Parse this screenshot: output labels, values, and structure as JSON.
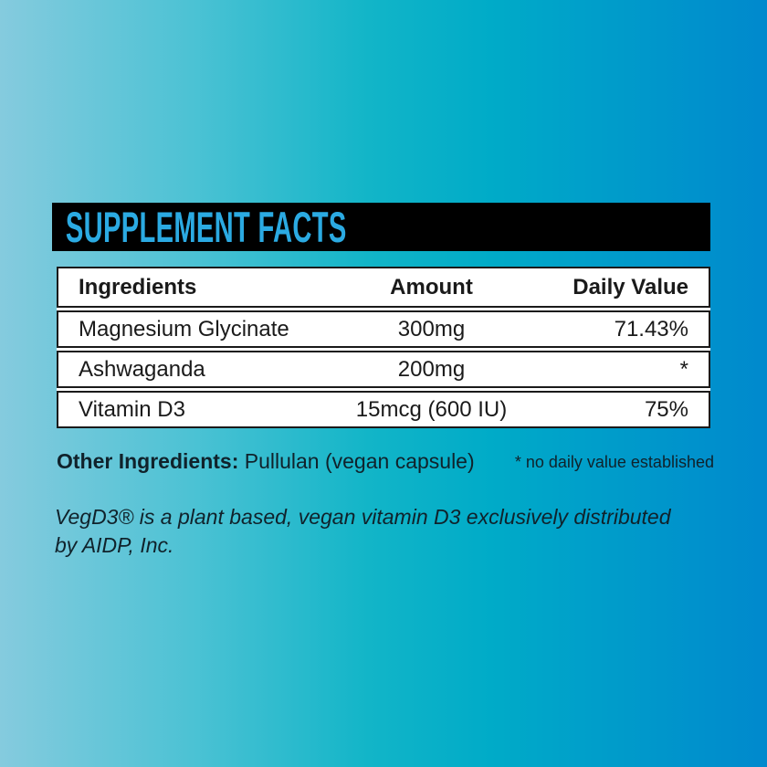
{
  "label": {
    "banner": {
      "title": "SUPPLEMENT FACTS"
    },
    "table": {
      "headers": {
        "ingredients": "Ingredients",
        "amount": "Amount",
        "daily_value": "Daily Value"
      },
      "rows": [
        {
          "ingredient": "Magnesium Glycinate",
          "amount": "300mg",
          "daily_value": "71.43%"
        },
        {
          "ingredient": "Ashwaganda",
          "amount": "200mg",
          "daily_value": "*"
        },
        {
          "ingredient": "Vitamin D3",
          "amount": "15mcg (600 IU)",
          "daily_value": "75%"
        }
      ]
    },
    "other_ingredients": {
      "label": "Other Ingredients:",
      "value": " Pullulan (vegan capsule)"
    },
    "footnote": "* no daily value established",
    "disclaimer": {
      "line1": "VegD3® is a plant based, vegan vitamin D3 exclusively distributed",
      "line2": "by AIDP, Inc."
    }
  },
  "colors": {
    "banner_bg": "#000000",
    "banner_text": "#2BAAE2",
    "gradient_left": "#85CBDE",
    "gradient_mid": "#00ABC8",
    "gradient_right": "#0089CD",
    "table_bg": "#FFFFFF",
    "table_border": "#1A1A1A",
    "text": "#10222B"
  }
}
